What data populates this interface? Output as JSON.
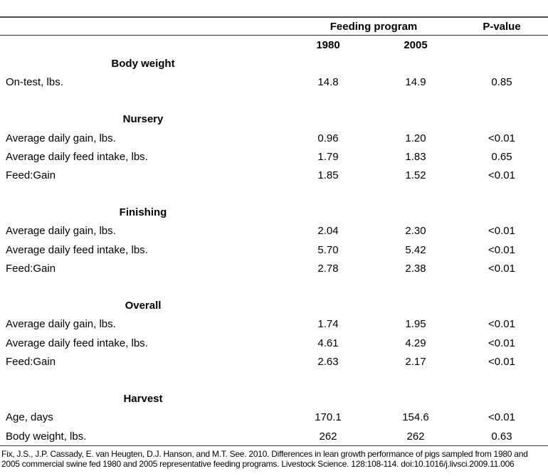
{
  "table": {
    "header": {
      "feeding_program": "Feeding program",
      "p_value": "P-value",
      "year_1980": "1980",
      "year_2005": "2005"
    },
    "sections": [
      {
        "title": "Body weight",
        "rows": [
          {
            "label": "On-test, lbs.",
            "v1980": "14.8",
            "v2005": "14.9",
            "p": "0.85"
          }
        ]
      },
      {
        "title": "Nursery",
        "rows": [
          {
            "label": "Average daily gain, lbs.",
            "v1980": "0.96",
            "v2005": "1.20",
            "p": "<0.01"
          },
          {
            "label": "Average daily feed intake, lbs.",
            "v1980": "1.79",
            "v2005": "1.83",
            "p": "0.65"
          },
          {
            "label": "Feed:Gain",
            "v1980": "1.85",
            "v2005": "1.52",
            "p": "<0.01"
          }
        ]
      },
      {
        "title": "Finishing",
        "rows": [
          {
            "label": "Average daily gain, lbs.",
            "v1980": "2.04",
            "v2005": "2.30",
            "p": "<0.01"
          },
          {
            "label": "Average daily feed intake, lbs.",
            "v1980": "5.70",
            "v2005": "5.42",
            "p": "<0.01"
          },
          {
            "label": "Feed:Gain",
            "v1980": "2.78",
            "v2005": "2.38",
            "p": "<0.01"
          }
        ]
      },
      {
        "title": "Overall",
        "rows": [
          {
            "label": "Average daily gain, lbs.",
            "v1980": "1.74",
            "v2005": "1.95",
            "p": "<0.01"
          },
          {
            "label": "Average daily feed intake, lbs.",
            "v1980": "4.61",
            "v2005": "4.29",
            "p": "<0.01"
          },
          {
            "label": "Feed:Gain",
            "v1980": "2.63",
            "v2005": "2.17",
            "p": "<0.01"
          }
        ]
      },
      {
        "title": "Harvest",
        "rows": [
          {
            "label": "Age, days",
            "v1980": "170.1",
            "v2005": "154.6",
            "p": "<0.01"
          },
          {
            "label": "Body weight, lbs.",
            "v1980": "262",
            "v2005": "262",
            "p": "0.63"
          }
        ]
      }
    ]
  },
  "citation": "Fix, J.S., J.P. Cassady, E. van Heugten, D.J. Hanson, and M.T. See. 2010. Differences in lean growth performance of pigs sampled from 1980 and 2005 commercial swine fed 1980 and 2005 representative feeding programs. Livestock Science. 128:108-114. doi:10.1016/j.livsci.2009.11.006"
}
